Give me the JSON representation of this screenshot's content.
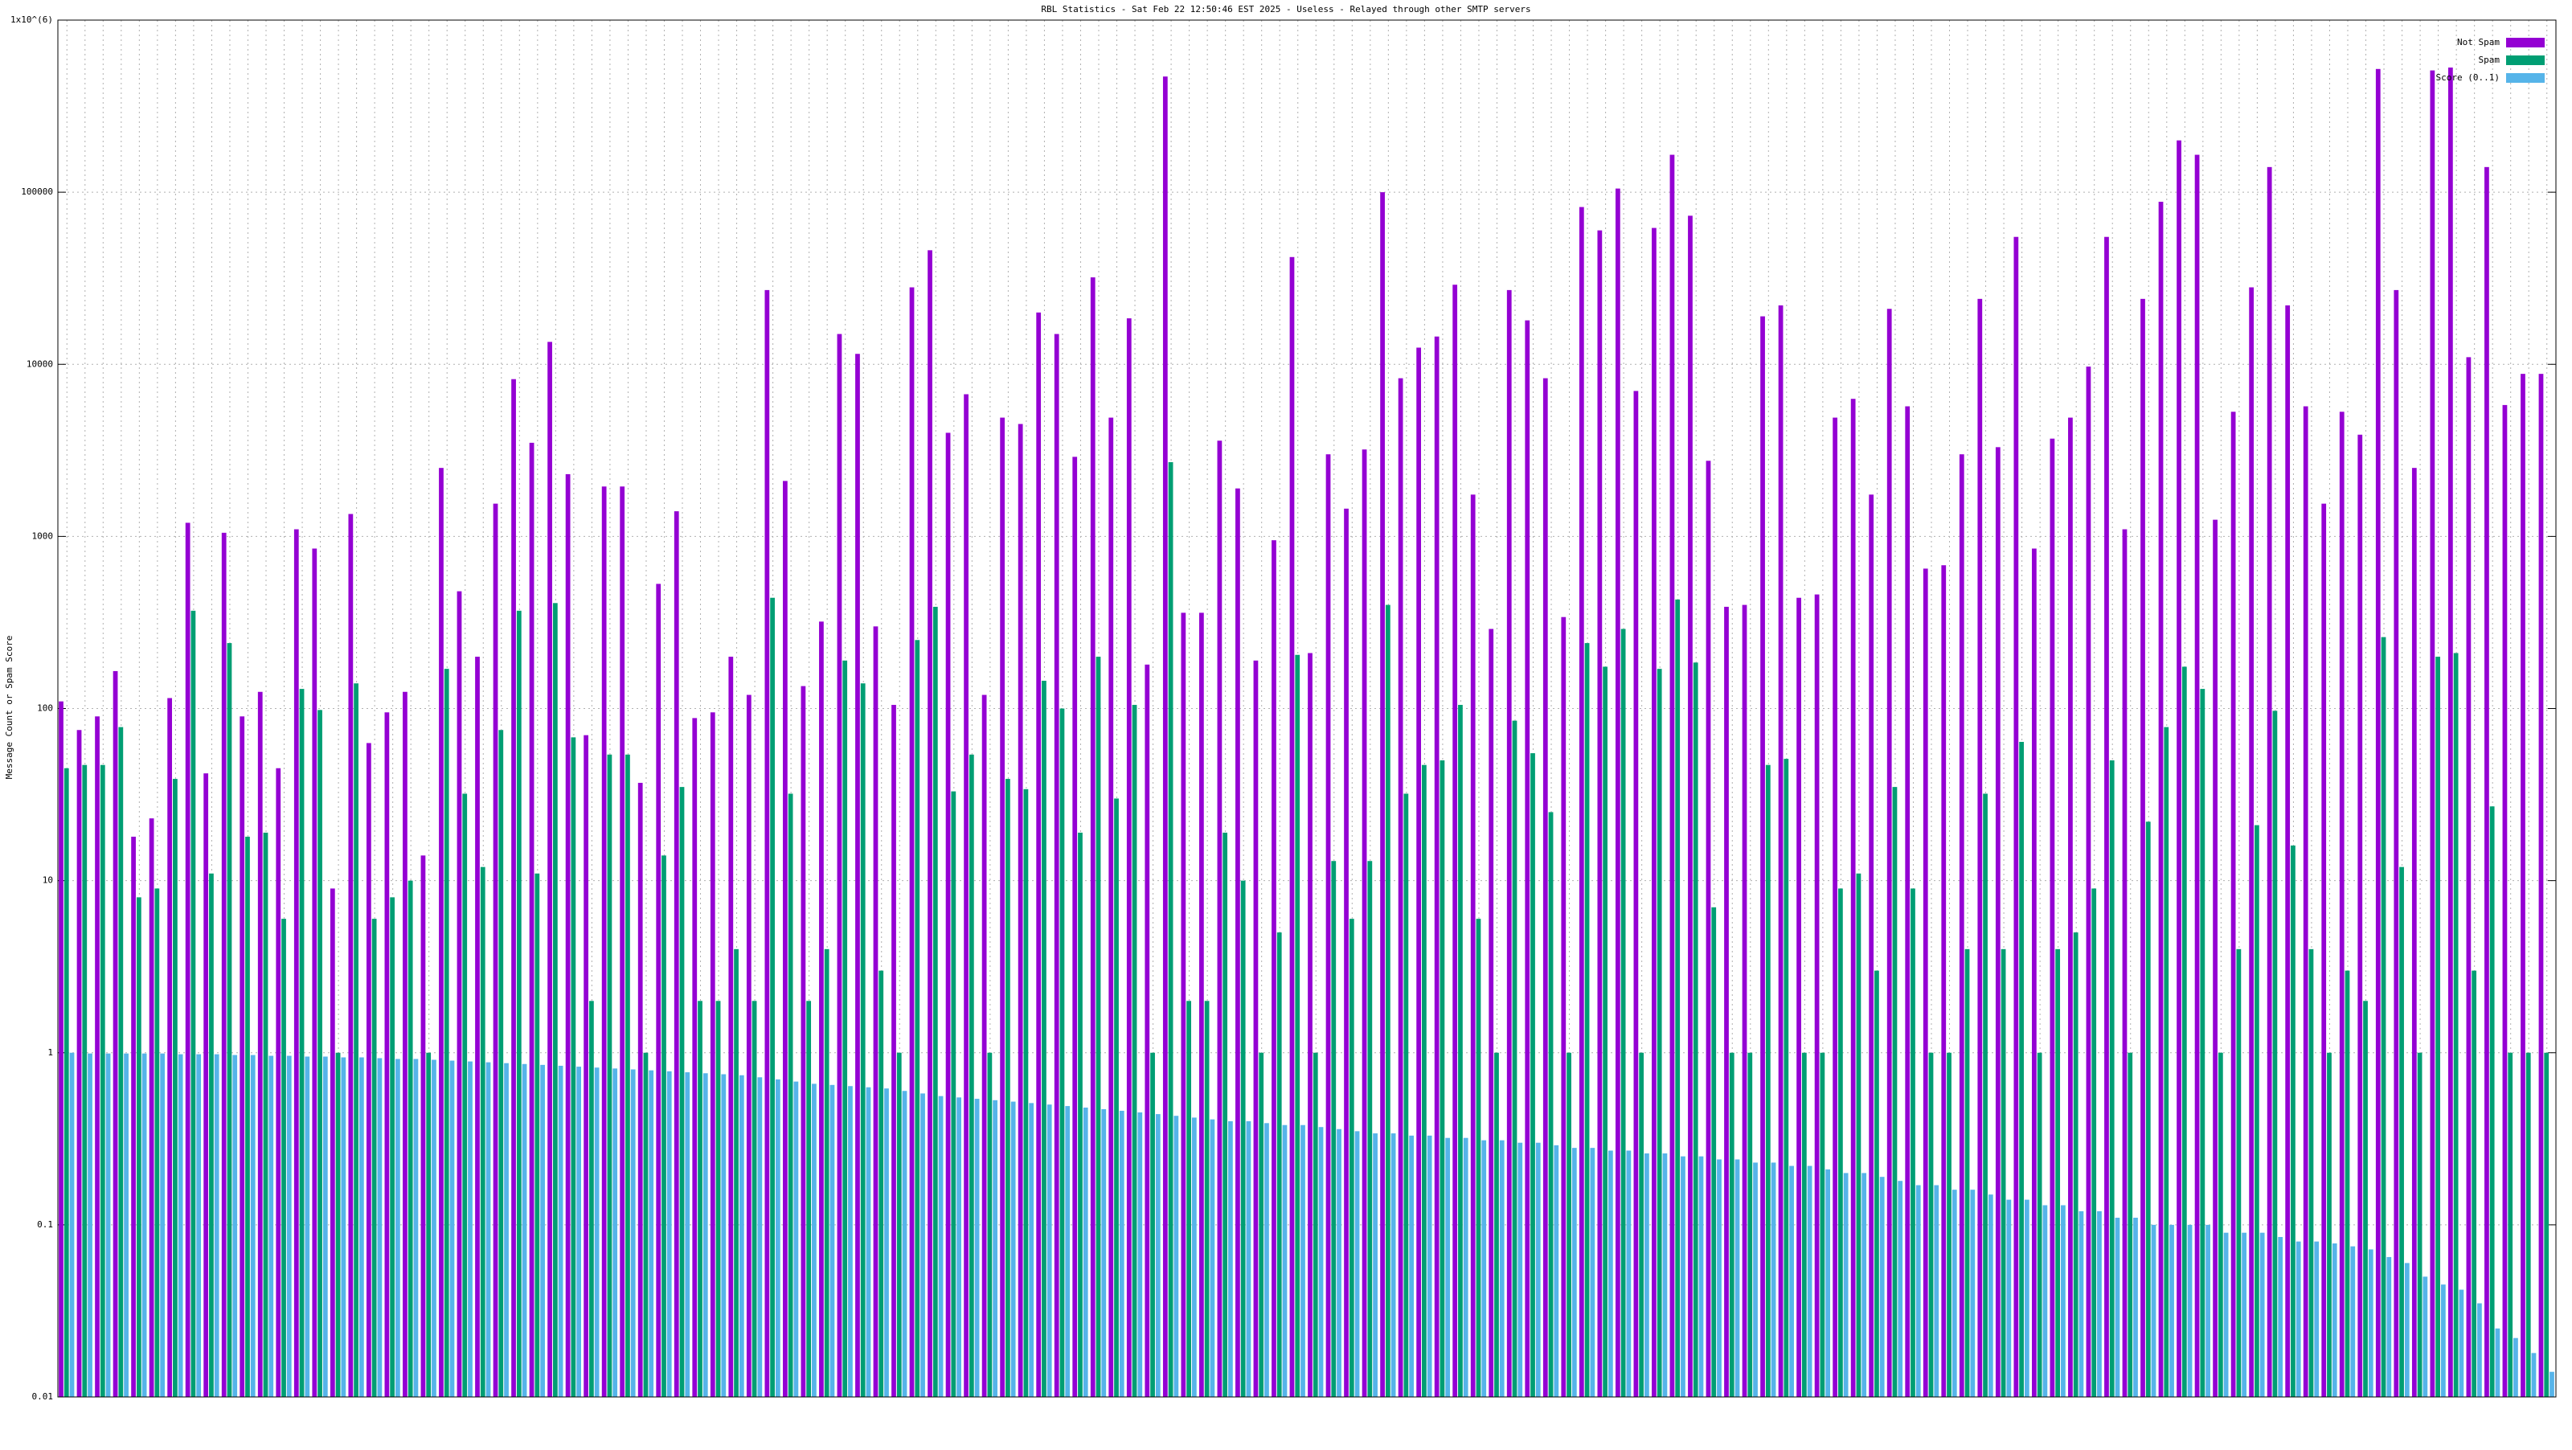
{
  "chart_data": {
    "type": "bar",
    "title": "RBL Statistics - Sat Feb 22 12:50:46 EST 2025 - Useless - Relayed through other SMTP servers",
    "y_label": "Message Count or Spam Score",
    "log_scale": true,
    "grid": true,
    "legend": "top-right",
    "ylim": [
      0.01,
      1000000
    ],
    "yticks": [
      0.01,
      0.1,
      1,
      10,
      100,
      1000,
      10000,
      100000,
      {
        "value": 1000000,
        "label": "1x10^(6)"
      }
    ],
    "categories": [
      null,
      null,
      null,
      null,
      null,
      null,
      null,
      null,
      null,
      null,
      null,
      null,
      null,
      null,
      null,
      null,
      null,
      null,
      null,
      null,
      null,
      null,
      null,
      null,
      null,
      null,
      null,
      null,
      null,
      null,
      null,
      null,
      null,
      null,
      null,
      null,
      null,
      null,
      null,
      null,
      null,
      null,
      null,
      null,
      null,
      null,
      null,
      null,
      null,
      null,
      null,
      null,
      null,
      null,
      null,
      null,
      null,
      null,
      null,
      null,
      null,
      null,
      null,
      null,
      null,
      null,
      null,
      null,
      null,
      null,
      null,
      null,
      null,
      null,
      null,
      null,
      null,
      null,
      null,
      null,
      null,
      null,
      null,
      null,
      null,
      null,
      null,
      null,
      null,
      null,
      null,
      null,
      null,
      null,
      null,
      null,
      null,
      null,
      null,
      null,
      null,
      null,
      null,
      null,
      null,
      null,
      null,
      null,
      null,
      null,
      null,
      null,
      null,
      null,
      null,
      null,
      null,
      null,
      null,
      null,
      null,
      null,
      null,
      null,
      null,
      null,
      null,
      null,
      null,
      null,
      null,
      null,
      null,
      null,
      null,
      null,
      null,
      null
    ],
    "series": [
      {
        "name": "Not Spam",
        "color": "#9400d3",
        "values": [
          110,
          75,
          90,
          165,
          18,
          23,
          115,
          1200,
          42,
          1050,
          90,
          125,
          45,
          1100,
          850,
          9,
          1350,
          63,
          95,
          125,
          14,
          2500,
          480,
          200,
          1550,
          8200,
          3500,
          13500,
          2300,
          70,
          1950,
          1950,
          37,
          530,
          1400,
          88,
          95,
          200,
          120,
          27000,
          2100,
          135,
          320,
          15000,
          11500,
          300,
          105,
          28000,
          46000,
          4000,
          6700,
          120,
          4900,
          4500,
          20000,
          15000,
          2900,
          32000,
          4900,
          18500,
          180,
          470000,
          360,
          360,
          3600,
          1900,
          190,
          950,
          42000,
          210,
          3000,
          1450,
          3200,
          100000,
          8300,
          12500,
          14500,
          29000,
          1750,
          290,
          27000,
          18000,
          8300,
          340,
          82000,
          60000,
          105000,
          7000,
          62000,
          165000,
          73000,
          2750,
          390,
          400,
          19000,
          22000,
          440,
          460,
          4900,
          6300,
          1750,
          21000,
          5700,
          650,
          680,
          3000,
          24000,
          3300,
          55000,
          850,
          3700,
          4900,
          9700,
          55000,
          1100,
          24000,
          88000,
          200000,
          165000,
          1250,
          5300,
          28000,
          140000,
          22000,
          5700,
          1550,
          5300,
          3900,
          520000,
          27000,
          2500,
          510000,
          530000,
          11000,
          140000,
          5800,
          8800,
          8800
        ]
      },
      {
        "name": "Spam",
        "color": "#009e73",
        "values": [
          45,
          47,
          47,
          78,
          8,
          9,
          39,
          370,
          11,
          240,
          18,
          19,
          6,
          130,
          98,
          1,
          140,
          6,
          8,
          10,
          1,
          170,
          32,
          12,
          75,
          370,
          11,
          410,
          68,
          2,
          54,
          54,
          1,
          14,
          35,
          2,
          2,
          4,
          2,
          440,
          32,
          2,
          4,
          190,
          140,
          3,
          1,
          250,
          390,
          33,
          54,
          1,
          39,
          34,
          145,
          100,
          19,
          200,
          30,
          105,
          1,
          2700,
          2,
          2,
          19,
          10,
          1,
          5,
          205,
          1,
          13,
          6,
          13,
          400,
          32,
          47,
          50,
          105,
          6,
          1,
          85,
          55,
          25,
          1,
          240,
          175,
          290,
          1,
          170,
          430,
          185,
          7,
          1,
          1,
          47,
          51,
          1,
          1,
          9,
          11,
          3,
          35,
          9,
          1,
          1,
          4,
          32,
          4,
          64,
          1,
          4,
          5,
          9,
          50,
          1,
          22,
          78,
          175,
          130,
          1,
          4,
          21,
          97,
          16,
          4,
          1,
          3,
          2,
          260,
          12,
          1,
          200,
          210,
          3,
          27,
          1,
          1,
          1
        ]
      },
      {
        "name": "Score (0..1)",
        "color": "#56b4e9",
        "values": [
          1,
          0.99,
          0.99,
          0.99,
          0.99,
          0.99,
          0.98,
          0.98,
          0.98,
          0.97,
          0.97,
          0.96,
          0.96,
          0.95,
          0.95,
          0.94,
          0.94,
          0.93,
          0.92,
          0.92,
          0.91,
          0.9,
          0.89,
          0.88,
          0.87,
          0.86,
          0.85,
          0.84,
          0.83,
          0.82,
          0.81,
          0.8,
          0.79,
          0.78,
          0.77,
          0.76,
          0.75,
          0.74,
          0.72,
          0.7,
          0.68,
          0.66,
          0.65,
          0.64,
          0.63,
          0.62,
          0.6,
          0.58,
          0.56,
          0.55,
          0.54,
          0.53,
          0.52,
          0.51,
          0.5,
          0.49,
          0.48,
          0.47,
          0.46,
          0.45,
          0.44,
          0.43,
          0.42,
          0.41,
          0.4,
          0.4,
          0.39,
          0.38,
          0.38,
          0.37,
          0.36,
          0.35,
          0.34,
          0.34,
          0.33,
          0.33,
          0.32,
          0.32,
          0.31,
          0.31,
          0.3,
          0.3,
          0.29,
          0.28,
          0.28,
          0.27,
          0.27,
          0.26,
          0.26,
          0.25,
          0.25,
          0.24,
          0.24,
          0.23,
          0.23,
          0.22,
          0.22,
          0.21,
          0.2,
          0.2,
          0.19,
          0.18,
          0.17,
          0.17,
          0.16,
          0.16,
          0.15,
          0.14,
          0.14,
          0.13,
          0.13,
          0.12,
          0.12,
          0.11,
          0.11,
          0.1,
          0.1,
          0.1,
          0.1,
          0.09,
          0.09,
          0.09,
          0.085,
          0.08,
          0.08,
          0.078,
          0.075,
          0.072,
          0.065,
          0.06,
          0.05,
          0.045,
          0.042,
          0.035,
          0.025,
          0.022,
          0.018,
          0.014
        ]
      }
    ]
  }
}
